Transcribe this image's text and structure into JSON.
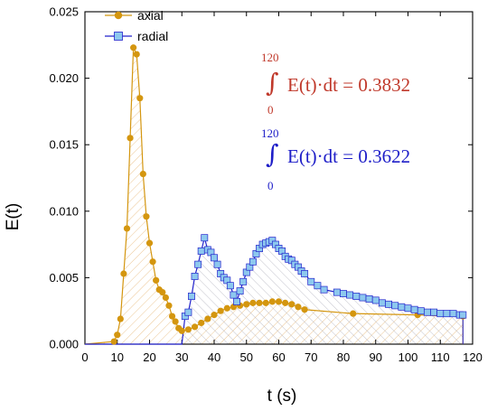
{
  "chart_data": {
    "type": "line",
    "xlabel": "t (s)",
    "ylabel": "E(t)",
    "xlim": [
      0,
      120
    ],
    "ylim": [
      0,
      0.025
    ],
    "x_ticks": [
      "0",
      "10",
      "20",
      "30",
      "40",
      "50",
      "60",
      "70",
      "80",
      "90",
      "100",
      "110",
      "120"
    ],
    "y_ticks": [
      "0.000",
      "0.005",
      "0.010",
      "0.015",
      "0.020",
      "0.025"
    ],
    "legend_position": "top-left",
    "series": [
      {
        "name": "axial",
        "color": "#D4960F",
        "marker": "circle",
        "hatch": "forward",
        "x": [
          0,
          9,
          10,
          11,
          12,
          13,
          14,
          15,
          16,
          17,
          18,
          19,
          20,
          21,
          22,
          23,
          24,
          25,
          26,
          27,
          28,
          29,
          30,
          32,
          34,
          36,
          38,
          40,
          42,
          44,
          46,
          48,
          50,
          52,
          54,
          56,
          58,
          60,
          62,
          64,
          66,
          68,
          83,
          103,
          117
        ],
        "y": [
          0,
          0.0002,
          0.0007,
          0.0019,
          0.0053,
          0.0087,
          0.0155,
          0.0223,
          0.0218,
          0.0185,
          0.0128,
          0.0096,
          0.0076,
          0.0062,
          0.0048,
          0.0041,
          0.0039,
          0.0035,
          0.0029,
          0.0021,
          0.0017,
          0.0012,
          0.001,
          0.0011,
          0.0013,
          0.0016,
          0.0019,
          0.0022,
          0.0025,
          0.0027,
          0.0028,
          0.0029,
          0.003,
          0.0031,
          0.0031,
          0.0031,
          0.0032,
          0.0032,
          0.0031,
          0.003,
          0.0028,
          0.0026,
          0.0023,
          0.0022,
          0.0021
        ]
      },
      {
        "name": "radial",
        "color": "#2222CC",
        "marker_fill": "#8DC8EE",
        "marker": "square",
        "hatch": "backward",
        "x": [
          0,
          30,
          31,
          32,
          33,
          34,
          35,
          36,
          37,
          38,
          39,
          40,
          41,
          42,
          43,
          44,
          45,
          46,
          47,
          48,
          49,
          50,
          51,
          52,
          53,
          54,
          55,
          56,
          57,
          58,
          59,
          60,
          61,
          62,
          63,
          64,
          65,
          66,
          67,
          68,
          70,
          72,
          74,
          78,
          80,
          82,
          84,
          86,
          88,
          90,
          92,
          94,
          96,
          98,
          100,
          102,
          104,
          106,
          108,
          110,
          112,
          114,
          116,
          117
        ],
        "y": [
          0,
          0,
          0.0021,
          0.0024,
          0.0036,
          0.0051,
          0.006,
          0.007,
          0.008,
          0.0071,
          0.0069,
          0.0065,
          0.006,
          0.0053,
          0.005,
          0.0048,
          0.0044,
          0.0037,
          0.0032,
          0.004,
          0.0047,
          0.0054,
          0.0058,
          0.0062,
          0.0068,
          0.0072,
          0.0075,
          0.0076,
          0.0077,
          0.0078,
          0.0075,
          0.0072,
          0.007,
          0.0066,
          0.0064,
          0.0063,
          0.006,
          0.0058,
          0.0055,
          0.0053,
          0.0047,
          0.0044,
          0.0041,
          0.0039,
          0.0038,
          0.0037,
          0.0036,
          0.0035,
          0.0034,
          0.0033,
          0.0031,
          0.003,
          0.0029,
          0.0028,
          0.0027,
          0.0026,
          0.0025,
          0.0024,
          0.0024,
          0.0023,
          0.0023,
          0.0023,
          0.0022,
          0.0022
        ]
      }
    ],
    "annotations": [
      {
        "lower": "0",
        "upper": "120",
        "text": "E(t)·dt = 0.3832",
        "color": "#C0392B"
      },
      {
        "lower": "0",
        "upper": "120",
        "text": "E(t)·dt = 0.3622",
        "color": "#1E1EC8"
      }
    ]
  }
}
